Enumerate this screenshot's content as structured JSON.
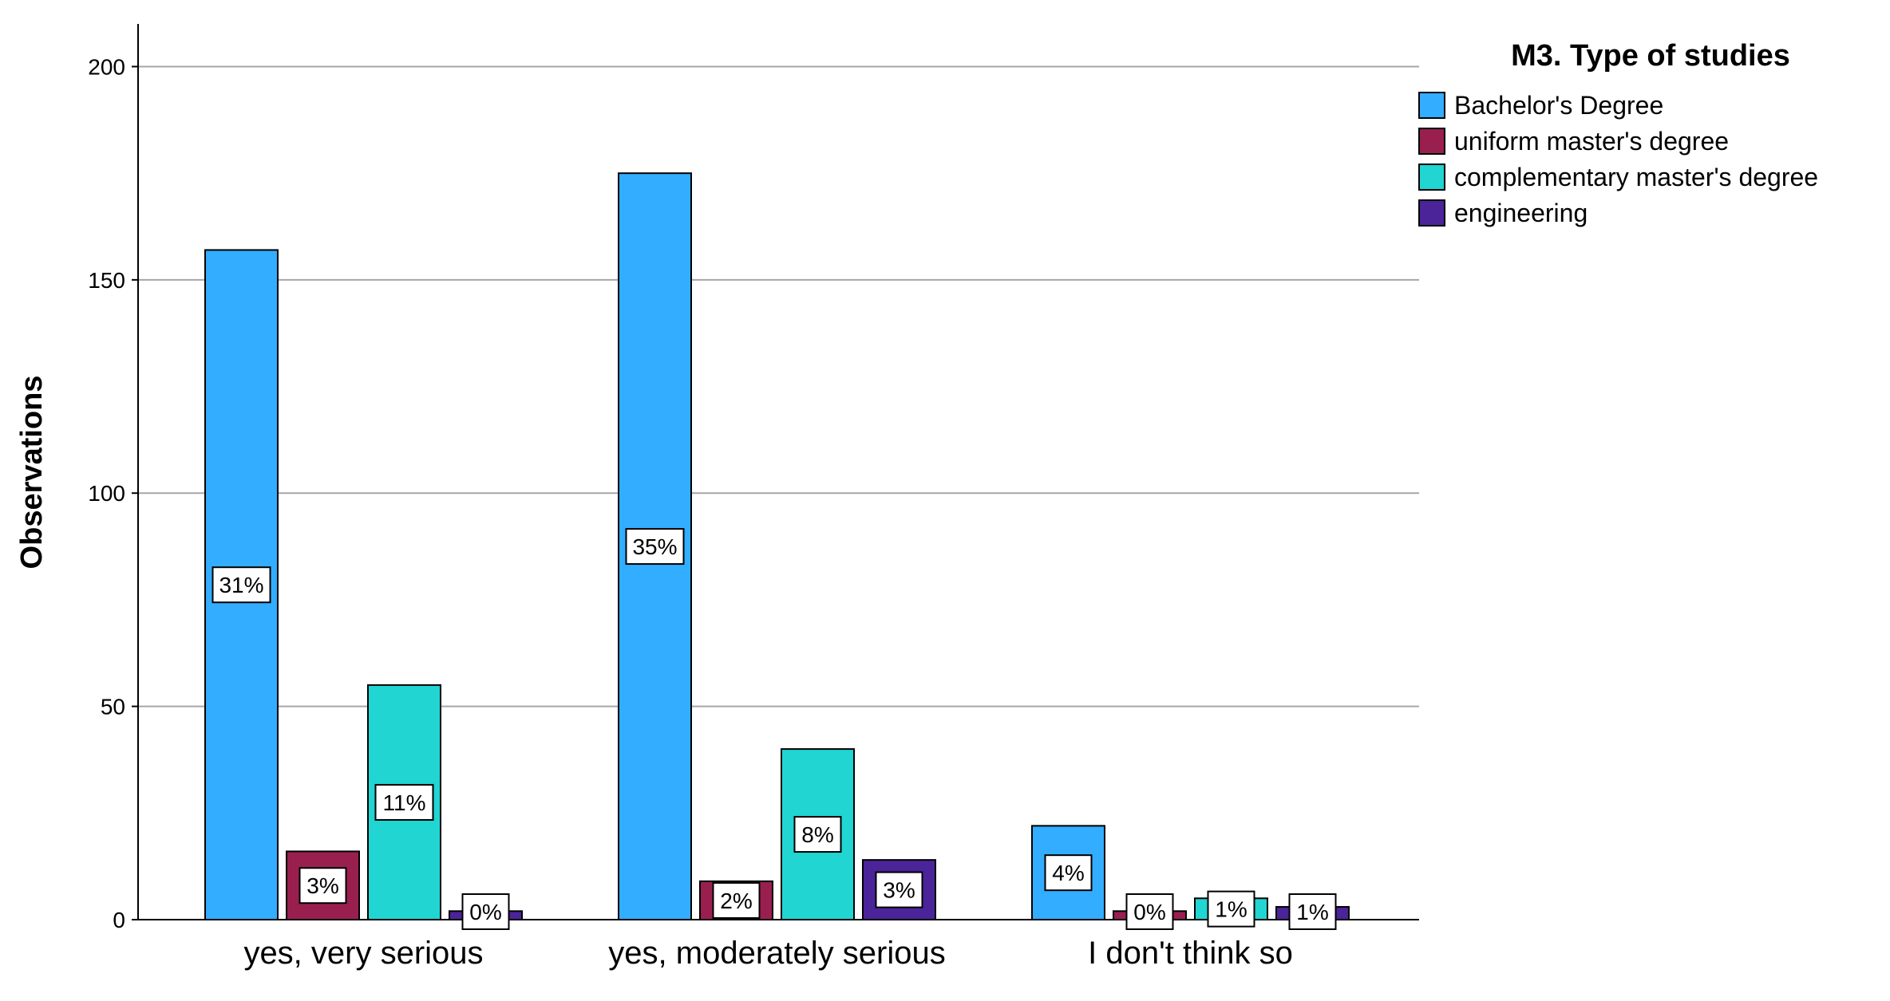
{
  "chart_data": {
    "type": "bar",
    "ylabel": "Observations",
    "xlabel": "",
    "ylim": [
      0,
      210
    ],
    "yticks": [
      0,
      50,
      100,
      150,
      200
    ],
    "grid": true,
    "legend": {
      "title": "M3. Type of studies",
      "position": "top-right"
    },
    "categories": [
      "yes, very serious",
      "yes, moderately serious",
      "I don't think so"
    ],
    "series": [
      {
        "name": "Bachelor's Degree",
        "color": "#33adff",
        "values": [
          157,
          175,
          22
        ],
        "labels": [
          "31%",
          "35%",
          "4%"
        ]
      },
      {
        "name": "uniform master's degree",
        "color": "#991f4f",
        "values": [
          16,
          9,
          2
        ],
        "labels": [
          "3%",
          "2%",
          "0%"
        ]
      },
      {
        "name": "complementary master's degree",
        "color": "#20d5d2",
        "values": [
          55,
          40,
          5
        ],
        "labels": [
          "11%",
          "8%",
          "1%"
        ]
      },
      {
        "name": "engineering",
        "color": "#4b2499",
        "values": [
          2,
          14,
          3
        ],
        "labels": [
          "0%",
          "3%",
          "1%"
        ]
      }
    ]
  }
}
